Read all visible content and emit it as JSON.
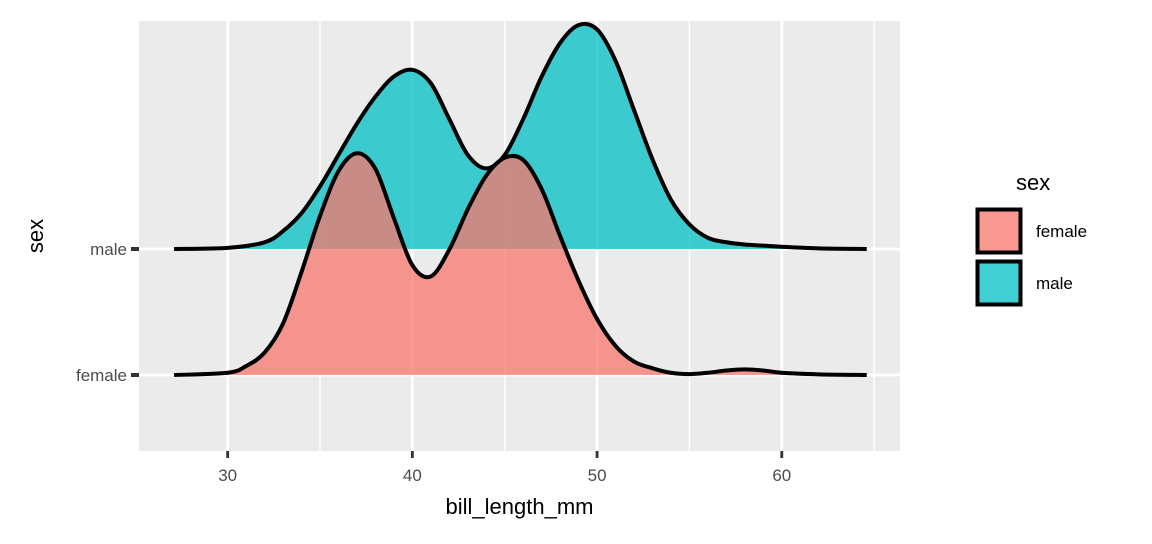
{
  "chart_data": {
    "type": "ridgeline",
    "xlabel": "bill_length_mm",
    "ylabel": "sex",
    "xlim": [
      25.2,
      66.4
    ],
    "x_ticks": [
      30,
      40,
      50,
      60
    ],
    "categories": [
      "female",
      "male"
    ],
    "grid": true,
    "legend": {
      "title": "sex",
      "position": "right",
      "entries": [
        {
          "label": "female",
          "color": "#F8766D"
        },
        {
          "label": "male",
          "color": "#00BFC4"
        }
      ]
    },
    "series": [
      {
        "name": "female",
        "color": "#F8766D",
        "x": [
          27.1,
          30,
          31,
          32,
          33,
          34,
          35,
          36,
          37,
          38,
          39,
          40,
          41,
          42,
          43,
          44,
          45,
          46,
          47,
          48,
          49,
          50,
          51,
          52,
          53,
          54,
          55,
          56,
          57,
          58,
          59,
          60,
          62,
          64.6
        ],
        "density": [
          0.0,
          0.01,
          0.04,
          0.1,
          0.23,
          0.46,
          0.71,
          0.91,
          0.99,
          0.92,
          0.7,
          0.49,
          0.44,
          0.56,
          0.74,
          0.89,
          0.97,
          0.96,
          0.83,
          0.62,
          0.42,
          0.25,
          0.13,
          0.06,
          0.03,
          0.01,
          0.004,
          0.01,
          0.02,
          0.025,
          0.02,
          0.01,
          0.003,
          0.0
        ]
      },
      {
        "name": "male",
        "color": "#00BFC4",
        "x": [
          27.1,
          30,
          32,
          33,
          34,
          35,
          36,
          37,
          38,
          39,
          40,
          41,
          42,
          43,
          44,
          45,
          46,
          47,
          48,
          49,
          50,
          51,
          52,
          53,
          54,
          55,
          56,
          57,
          58,
          59,
          60,
          62,
          64.6
        ],
        "density": [
          0.0,
          0.005,
          0.03,
          0.08,
          0.16,
          0.28,
          0.42,
          0.56,
          0.68,
          0.77,
          0.8,
          0.74,
          0.58,
          0.42,
          0.36,
          0.42,
          0.58,
          0.77,
          0.92,
          1.0,
          0.98,
          0.84,
          0.62,
          0.4,
          0.22,
          0.11,
          0.05,
          0.03,
          0.02,
          0.015,
          0.01,
          0.003,
          0.0
        ]
      }
    ]
  }
}
